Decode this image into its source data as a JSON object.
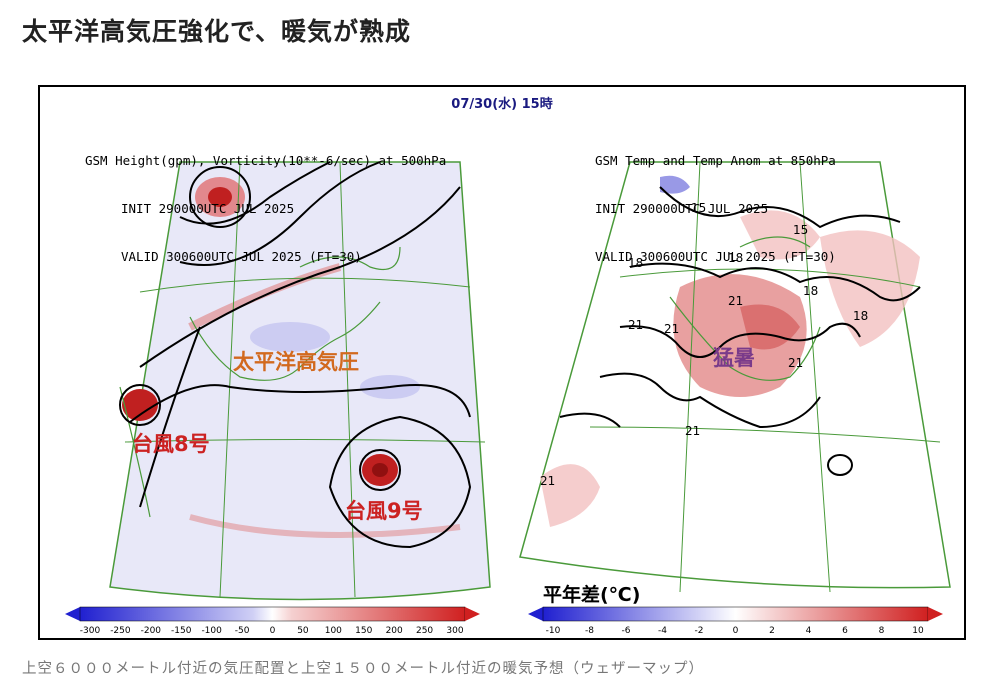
{
  "headline": "太平洋高気圧強化で、暖気が熟成",
  "valid_time": "07/30(水) 15時",
  "left_panel": {
    "title_lines": [
      "GSM Height(gpm), Vorticity(10**-6/sec) at 500hPa",
      "INIT 290000UTC JUL 2025",
      "VALID 300600UTC JUL 2025 (FT=30)"
    ],
    "labels": {
      "high": "太平洋高気圧",
      "typhoon8": "台風8号",
      "typhoon9": "台風9号"
    },
    "colorbar": {
      "ticks": [
        "-300",
        "-250",
        "-200",
        "-150",
        "-100",
        "-50",
        "0",
        "50",
        "100",
        "150",
        "200",
        "250",
        "300"
      ]
    }
  },
  "right_panel": {
    "title_lines": [
      "GSM Temp and Temp Anom at 850hPa",
      "INIT 290000UTC JUL 2025",
      "VALID 300600UTC JUL 2025 (FT=30)"
    ],
    "labels": {
      "heat": "猛暑",
      "anomaly_title": "平年差(℃)"
    },
    "contour_labels": [
      "15",
      "15",
      "18",
      "18",
      "18",
      "18",
      "21",
      "21",
      "21",
      "21",
      "21",
      "21"
    ],
    "colorbar": {
      "ticks": [
        "-10",
        "-8",
        "-6",
        "-4",
        "-2",
        "0",
        "2",
        "4",
        "6",
        "8",
        "10"
      ]
    }
  },
  "caption": "上空６０００メートル付近の気圧配置と上空１５００メートル付近の暖気予想（ウェザーマップ）",
  "colors": {
    "label_orange": "#d2691e",
    "label_red": "#cc2222",
    "label_purple": "#7a3b8a",
    "grid_green": "#4a9a3a",
    "contour": "#000000",
    "warm": "#e06060",
    "cool": "#8080e0"
  }
}
